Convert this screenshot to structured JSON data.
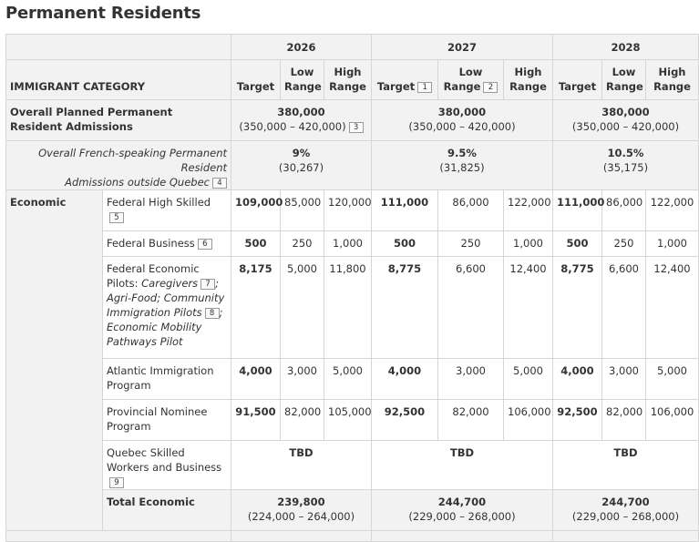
{
  "page_title": "Permanent Residents",
  "years": [
    "2026",
    "2027",
    "2028"
  ],
  "headers": {
    "category": "IMMIGRANT CATEGORY",
    "target": "Target",
    "low_range": "Low Range",
    "high_range": "High Range",
    "low": "Low",
    "high": "High",
    "range": "Range"
  },
  "footnotes": {
    "f1": "1",
    "f2": "2",
    "f3": "3",
    "f4": "4",
    "f5": "5",
    "f6": "6",
    "f7": "7",
    "f8": "8",
    "f9": "9"
  },
  "overall": {
    "label": "Overall Planned Permanent Resident Admissions",
    "y2026": {
      "target": "380,000",
      "range": "(350,000 – 420,000)"
    },
    "y2027": {
      "target": "380,000",
      "range": "(350,000 – 420,000)"
    },
    "y2028": {
      "target": "380,000",
      "range": "(350,000 – 420,000)"
    }
  },
  "french": {
    "label_line1": "Overall French-speaking Permanent Resident",
    "label_line2": "Admissions outside Quebec",
    "y2026": {
      "pct": "9%",
      "count": "(30,267)"
    },
    "y2027": {
      "pct": "9.5%",
      "count": "(31,825)"
    },
    "y2028": {
      "pct": "10.5%",
      "count": "(35,175)"
    }
  },
  "economic": {
    "label": "Economic",
    "rows": [
      {
        "name": "Federal High Skilled",
        "v": [
          "109,000",
          "85,000",
          "120,000",
          "111,000",
          "86,000",
          "122,000",
          "111,000",
          "86,000",
          "122,000"
        ]
      },
      {
        "name": "Federal Business",
        "v": [
          "500",
          "250",
          "1,000",
          "500",
          "250",
          "1,000",
          "500",
          "250",
          "1,000"
        ]
      },
      {
        "name_plain": "Federal Economic Pilots:",
        "name_italic1": "Caregivers",
        "name_italic2": "Agri-Food; Community Immigration Pilots",
        "name_italic3": "Economic Mobility Pathways Pilot",
        "v": [
          "8,175",
          "5,000",
          "11,800",
          "8,775",
          "6,600",
          "12,400",
          "8,775",
          "6,600",
          "12,400"
        ]
      },
      {
        "name": "Atlantic Immigration Program",
        "v": [
          "4,000",
          "3,000",
          "5,000",
          "4,000",
          "3,000",
          "5,000",
          "4,000",
          "3,000",
          "5,000"
        ]
      },
      {
        "name": "Provincial Nominee Program",
        "v": [
          "91,500",
          "82,000",
          "105,000",
          "92,500",
          "82,000",
          "106,000",
          "92,500",
          "82,000",
          "106,000"
        ]
      },
      {
        "name": "Quebec Skilled Workers and Business",
        "tbd": "TBD"
      }
    ],
    "total": {
      "label": "Total Economic",
      "y2026": {
        "target": "239,800",
        "range": "(224,000 – 264,000)"
      },
      "y2027": {
        "target": "244,700",
        "range": "(229,000 – 268,000)"
      },
      "y2028": {
        "target": "244,700",
        "range": "(229,000 – 268,000)"
      }
    }
  }
}
